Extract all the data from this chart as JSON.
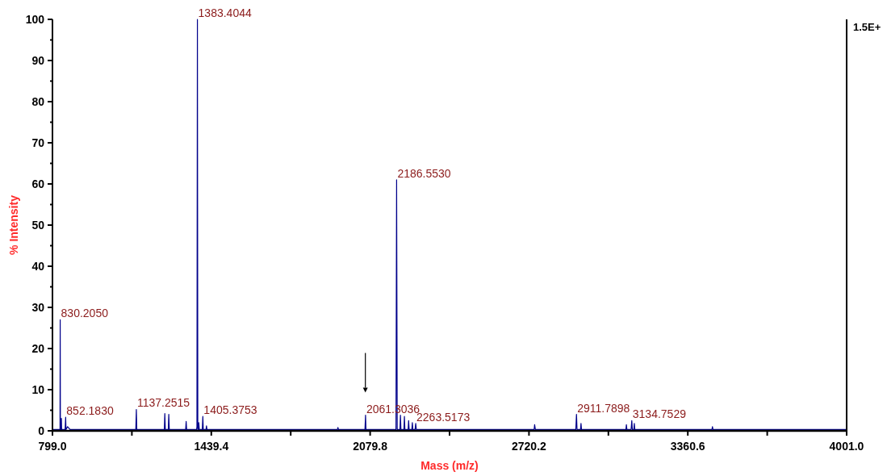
{
  "chart_data": {
    "type": "line",
    "xlabel": "Mass (m/z)",
    "ylabel": "% Intensity",
    "x": [
      799,
      828,
      829.5,
      830.2,
      831,
      834,
      835,
      836,
      850,
      852.18,
      853.5,
      860,
      870,
      1000,
      1135,
      1137.25,
      1139,
      1250,
      1252,
      1254,
      1266,
      1268,
      1270,
      1336,
      1338,
      1340,
      1380,
      1381.5,
      1383.4,
      1385,
      1387,
      1389,
      1391,
      1403,
      1405.38,
      1407,
      1418,
      1420,
      1422,
      1700,
      1948,
      1950,
      1952,
      2059,
      2061.3,
      2063,
      2120,
      2184,
      2186.55,
      2189,
      2200,
      2202,
      2204,
      2216,
      2218,
      2220,
      2233,
      2235,
      2237,
      2248,
      2250,
      2252,
      2261,
      2263.52,
      2266,
      2500,
      2741,
      2743,
      2746,
      2909,
      2911.79,
      2914,
      2928,
      2930,
      2932,
      3111,
      3113,
      3115,
      3132,
      3134.75,
      3137,
      3143,
      3145,
      3147,
      3458,
      3460,
      3462,
      3800,
      4001
    ],
    "series": [
      {
        "color": "#00008b",
        "values": [
          0.3,
          0.3,
          0.3,
          27,
          0.3,
          0.3,
          3,
          0.3,
          0.3,
          3.3,
          0.3,
          1,
          0.3,
          0.3,
          0.3,
          5.2,
          0.3,
          0.3,
          4.2,
          0.3,
          0.3,
          4,
          0.3,
          0.3,
          2.3,
          0.3,
          0.3,
          1,
          100,
          0.3,
          0.3,
          2,
          0.3,
          0.3,
          3.5,
          0.3,
          0.3,
          1.2,
          0.3,
          0.3,
          0.3,
          0.8,
          0.3,
          0.3,
          3.8,
          0.3,
          0.3,
          0.3,
          61,
          0.3,
          0.3,
          3.8,
          0.3,
          0.3,
          3.5,
          0.3,
          0.3,
          2.5,
          0.3,
          0.3,
          2,
          0.3,
          0.3,
          1.8,
          0.3,
          0.3,
          0.3,
          1.5,
          0.3,
          0.3,
          4,
          0.3,
          0.3,
          1.8,
          0.3,
          0.3,
          1.5,
          0.3,
          0.3,
          2.5,
          0.3,
          0.3,
          1.8,
          0.3,
          0.3,
          1,
          0.3,
          0.3,
          0.3
        ]
      }
    ],
    "xlim": [
      799,
      4001
    ],
    "xticks": [
      {
        "value": 799,
        "label": "799.0"
      },
      {
        "value": 1119.2,
        "label": null
      },
      {
        "value": 1439.4,
        "label": "1439.4"
      },
      {
        "value": 1759.6,
        "label": null
      },
      {
        "value": 2079.8,
        "label": "2079.8"
      },
      {
        "value": 2400,
        "label": null
      },
      {
        "value": 2720.2,
        "label": "2720.2"
      },
      {
        "value": 3040.4,
        "label": null
      },
      {
        "value": 3360.6,
        "label": "3360.6"
      },
      {
        "value": 3680.8,
        "label": null
      },
      {
        "value": 4001,
        "label": "4001.0"
      }
    ],
    "ylim": [
      0,
      100
    ],
    "yticks": [
      0,
      {
        "value": 5,
        "label": null
      },
      10,
      {
        "value": 15,
        "label": null
      },
      20,
      {
        "value": 25,
        "label": null
      },
      30,
      {
        "value": 35,
        "label": null
      },
      40,
      {
        "value": 45,
        "label": null
      },
      50,
      {
        "value": 55,
        "label": null
      },
      60,
      {
        "value": 65,
        "label": null
      },
      70,
      {
        "value": 75,
        "label": null
      },
      80,
      {
        "value": 85,
        "label": null
      },
      90,
      {
        "value": 95,
        "label": null
      },
      100
    ],
    "annotations": [
      {
        "text": "830.2050",
        "x": 830.2,
        "y": 27
      },
      {
        "text": "852.1830",
        "x": 852.18,
        "y": 3.3
      },
      {
        "text": "1137.2515",
        "x": 1137.25,
        "y": 5.2
      },
      {
        "text": "1383.4044",
        "x": 1383.4,
        "y": 100
      },
      {
        "text": "1405.3753",
        "x": 1405.38,
        "y": 3.5
      },
      {
        "text": "2061.3036",
        "x": 2061.3,
        "y": 3.8
      },
      {
        "text": "2186.5530",
        "x": 2186.55,
        "y": 61
      },
      {
        "text": "2263.5173",
        "x": 2263.52,
        "y": 1.8
      },
      {
        "text": "2911.7898",
        "x": 2911.79,
        "y": 4
      },
      {
        "text": "3134.7529",
        "x": 3134.75,
        "y": 2.5
      },
      "1.5E+"
    ]
  }
}
